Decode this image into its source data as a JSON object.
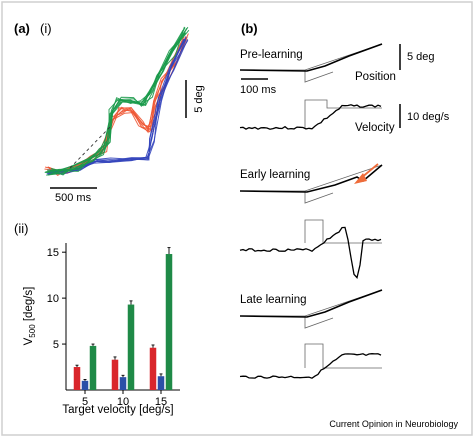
{
  "figure": {
    "panel_a": "(a)",
    "panel_a_i": "(i)",
    "panel_a_ii": "(ii)",
    "panel_b": "(b)",
    "credit": "Current Opinion in Neurobiology",
    "frame_color": "#cfcfcf"
  },
  "panel_a_i": {
    "scale_time": "500 ms",
    "scale_pos": "5 deg",
    "colors": {
      "red": "#ee5533",
      "green": "#1a9a4a",
      "blue": "#3344bb"
    }
  },
  "panel_b": {
    "pre_title": "Pre-learning",
    "early_title": "Early learning",
    "late_title": "Late learning",
    "position_label": "Position",
    "velocity_label": "Velocity",
    "scale_pos": "5 deg",
    "scale_vel": "10 deg/s",
    "scale_time": "100 ms",
    "arrow_color": "#ef6c3a"
  },
  "chart_data": {
    "type": "bar",
    "xlabel": "Target velocity [deg/s]",
    "ylabel_main": "V",
    "ylabel_sub": "500",
    "ylabel_unit": " [deg/s]",
    "categories": [
      "5",
      "10",
      "15"
    ],
    "ylim": [
      0,
      16
    ],
    "yticks": [
      "5",
      "10",
      "15"
    ],
    "series": [
      {
        "color": "#d9262b",
        "values": [
          2.5,
          3.3,
          4.6
        ],
        "errors": [
          0.2,
          0.3,
          0.3
        ]
      },
      {
        "color": "#2b4fa8",
        "values": [
          1.0,
          1.4,
          1.5
        ],
        "errors": [
          0.15,
          0.2,
          0.25
        ]
      },
      {
        "color": "#1f8a47",
        "values": [
          4.8,
          9.3,
          14.8
        ],
        "errors": [
          0.2,
          0.4,
          0.7
        ]
      }
    ]
  }
}
